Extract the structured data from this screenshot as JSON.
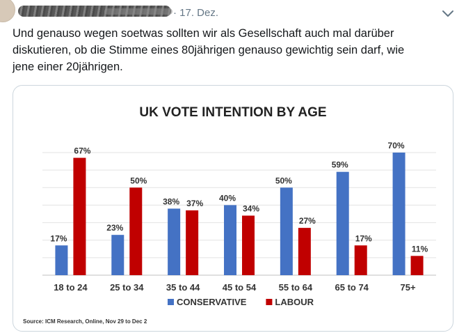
{
  "tweet": {
    "timestamp": "· 17. Dez.",
    "text": "Und genauso wegen soetwas sollten wir als Gesellschaft auch mal darüber\ndiskutieren, ob die Stimme eines 80jährigen genauso gewichtig sein darf, wie\njene einer 20jährigen."
  },
  "icons": {
    "caret": "chevron-down-icon"
  },
  "chart_data": {
    "type": "bar",
    "title": "UK VOTE INTENTION BY AGE",
    "categories": [
      "18 to 24",
      "25 to 34",
      "35 to 44",
      "45 to 54",
      "55 to 64",
      "65 to 74",
      "75+"
    ],
    "series": [
      {
        "name": "CONSERVATIVE",
        "color": "#4472c4",
        "values": [
          17,
          23,
          38,
          40,
          50,
          59,
          70
        ],
        "labels": [
          "17%",
          "23%",
          "38%",
          "40%",
          "50%",
          "59%",
          "70%"
        ]
      },
      {
        "name": "LABOUR",
        "color": "#c00000",
        "values": [
          67,
          50,
          37,
          34,
          27,
          17,
          11
        ],
        "labels": [
          "67%",
          "50%",
          "37%",
          "34%",
          "27%",
          "17%",
          "11%"
        ]
      }
    ],
    "ylim": [
      0,
      70
    ],
    "grid": true,
    "legend": "bottom",
    "source": "Source: ICM Research, Online, Nov 29 to Dec 2"
  }
}
